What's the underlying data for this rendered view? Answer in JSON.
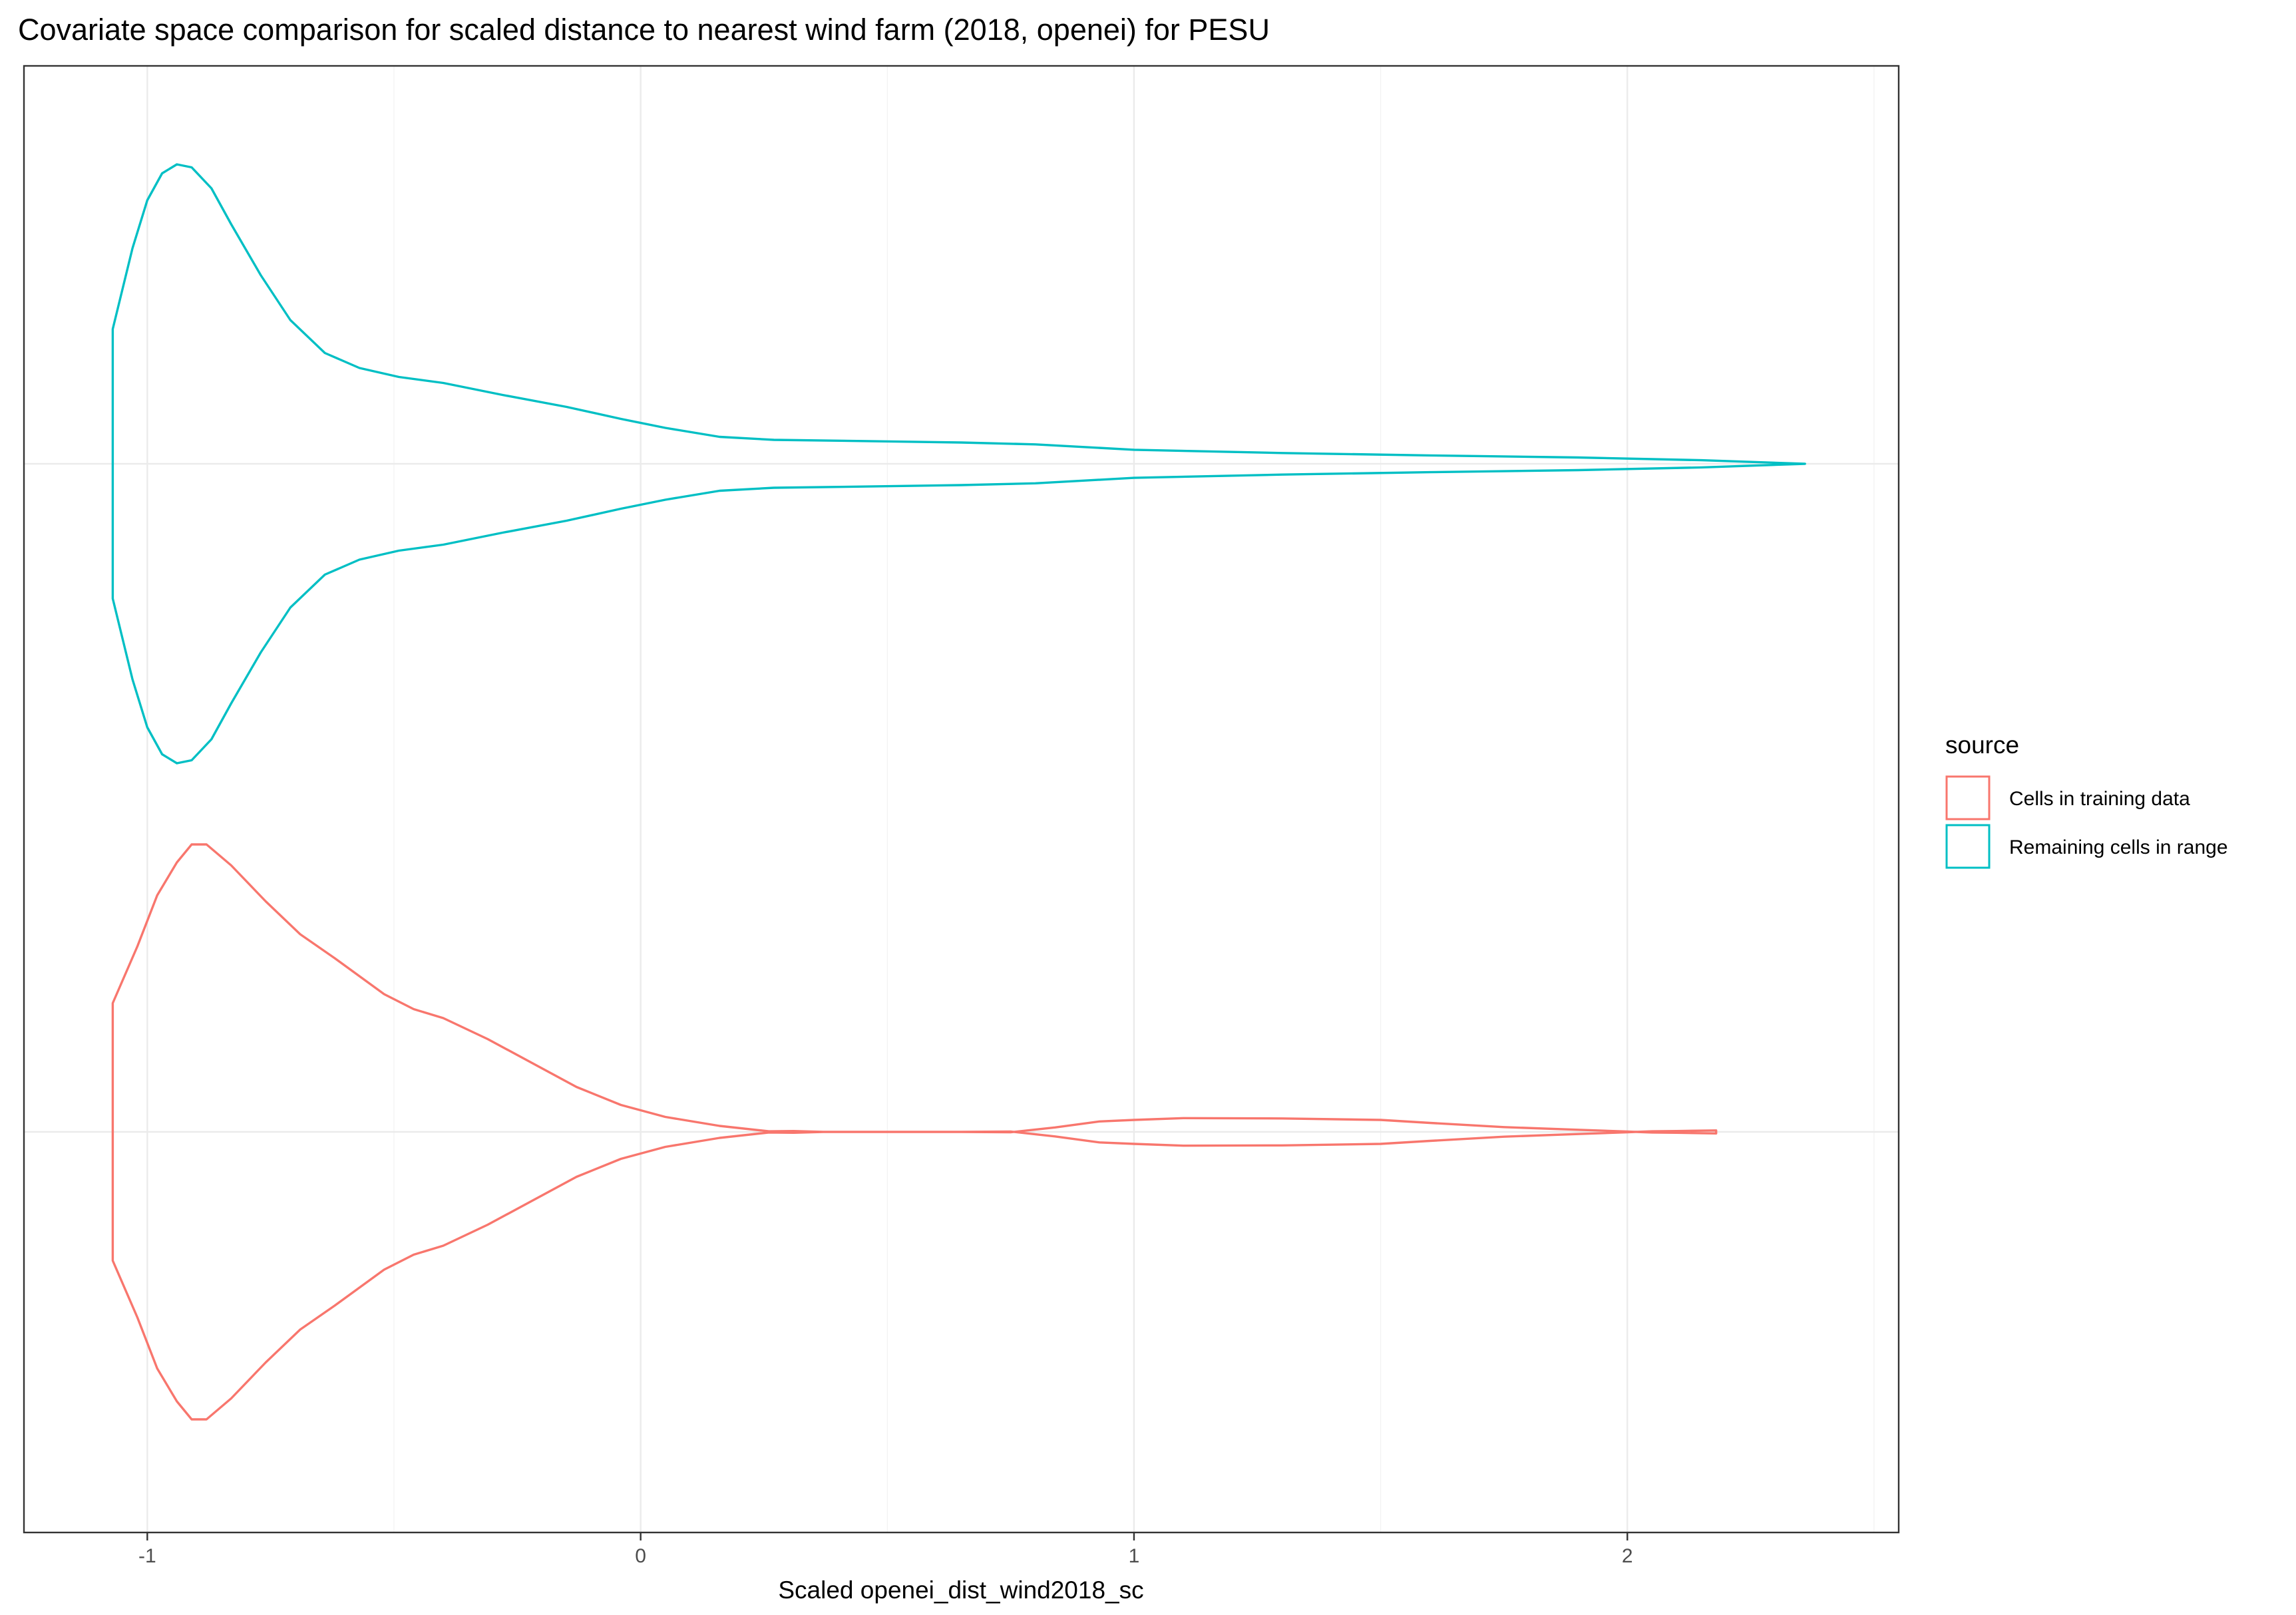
{
  "chart_data": {
    "type": "violin",
    "title": "Covariate space comparison for scaled distance to nearest wind farm (2018, openei) for PESU",
    "xlabel": "Scaled openei_dist_wind2018_sc",
    "ylabel": "",
    "orientation": "horizontal",
    "xlim": [
      -1.25,
      2.55
    ],
    "x_ticks": [
      -1,
      0,
      1,
      2
    ],
    "x_tick_labels": [
      "-1",
      "0",
      "1",
      "2"
    ],
    "grid": true,
    "legend": {
      "title": "source",
      "placement": "right",
      "entries": [
        "Cells in training data",
        "Remaining cells in range"
      ]
    },
    "series": [
      {
        "name": "Cells in training data",
        "color": "#F8766D",
        "half_width_profile": {
          "x": [
            -1.07,
            -1.02,
            -0.98,
            -0.94,
            -0.91,
            -0.88,
            -0.83,
            -0.76,
            -0.69,
            -0.62,
            -0.52,
            -0.46,
            -0.4,
            -0.31,
            -0.22,
            -0.13,
            -0.04,
            0.05,
            0.16,
            0.26,
            0.31,
            0.37,
            0.43,
            0.55,
            0.65,
            0.75,
            0.84,
            0.93,
            1.0,
            1.1,
            1.3,
            1.5,
            1.6,
            1.75,
            1.9,
            2.0,
            2.05,
            2.1,
            2.18
          ],
          "w": [
            0.43,
            0.62,
            0.79,
            0.9,
            0.96,
            0.96,
            0.89,
            0.77,
            0.66,
            0.58,
            0.46,
            0.41,
            0.38,
            0.31,
            0.23,
            0.15,
            0.09,
            0.05,
            0.02,
            0.002,
            0.003,
            0.0,
            0.0,
            0.0,
            0.0,
            0.001,
            -0.015,
            -0.035,
            -0.04,
            -0.046,
            -0.045,
            -0.04,
            -0.03,
            -0.016,
            -0.007,
            -0.001,
            0.002,
            0.003,
            0.005
          ]
        }
      },
      {
        "name": "Remaining cells in range",
        "color": "#00BFC4",
        "half_width_profile": {
          "x": [
            -1.07,
            -1.03,
            -1.0,
            -0.97,
            -0.94,
            -0.91,
            -0.87,
            -0.83,
            -0.77,
            -0.71,
            -0.64,
            -0.57,
            -0.49,
            -0.4,
            -0.28,
            -0.15,
            -0.04,
            0.05,
            0.16,
            0.27,
            0.45,
            0.65,
            0.8,
            1.0,
            1.3,
            1.6,
            1.9,
            2.15,
            2.36
          ],
          "w": [
            0.45,
            0.72,
            0.88,
            0.97,
            1.0,
            0.99,
            0.92,
            0.8,
            0.63,
            0.48,
            0.37,
            0.32,
            0.29,
            0.27,
            0.23,
            0.19,
            0.15,
            0.12,
            0.09,
            0.08,
            0.076,
            0.071,
            0.065,
            0.047,
            0.036,
            0.028,
            0.021,
            0.012,
            0.0
          ]
        }
      }
    ]
  }
}
